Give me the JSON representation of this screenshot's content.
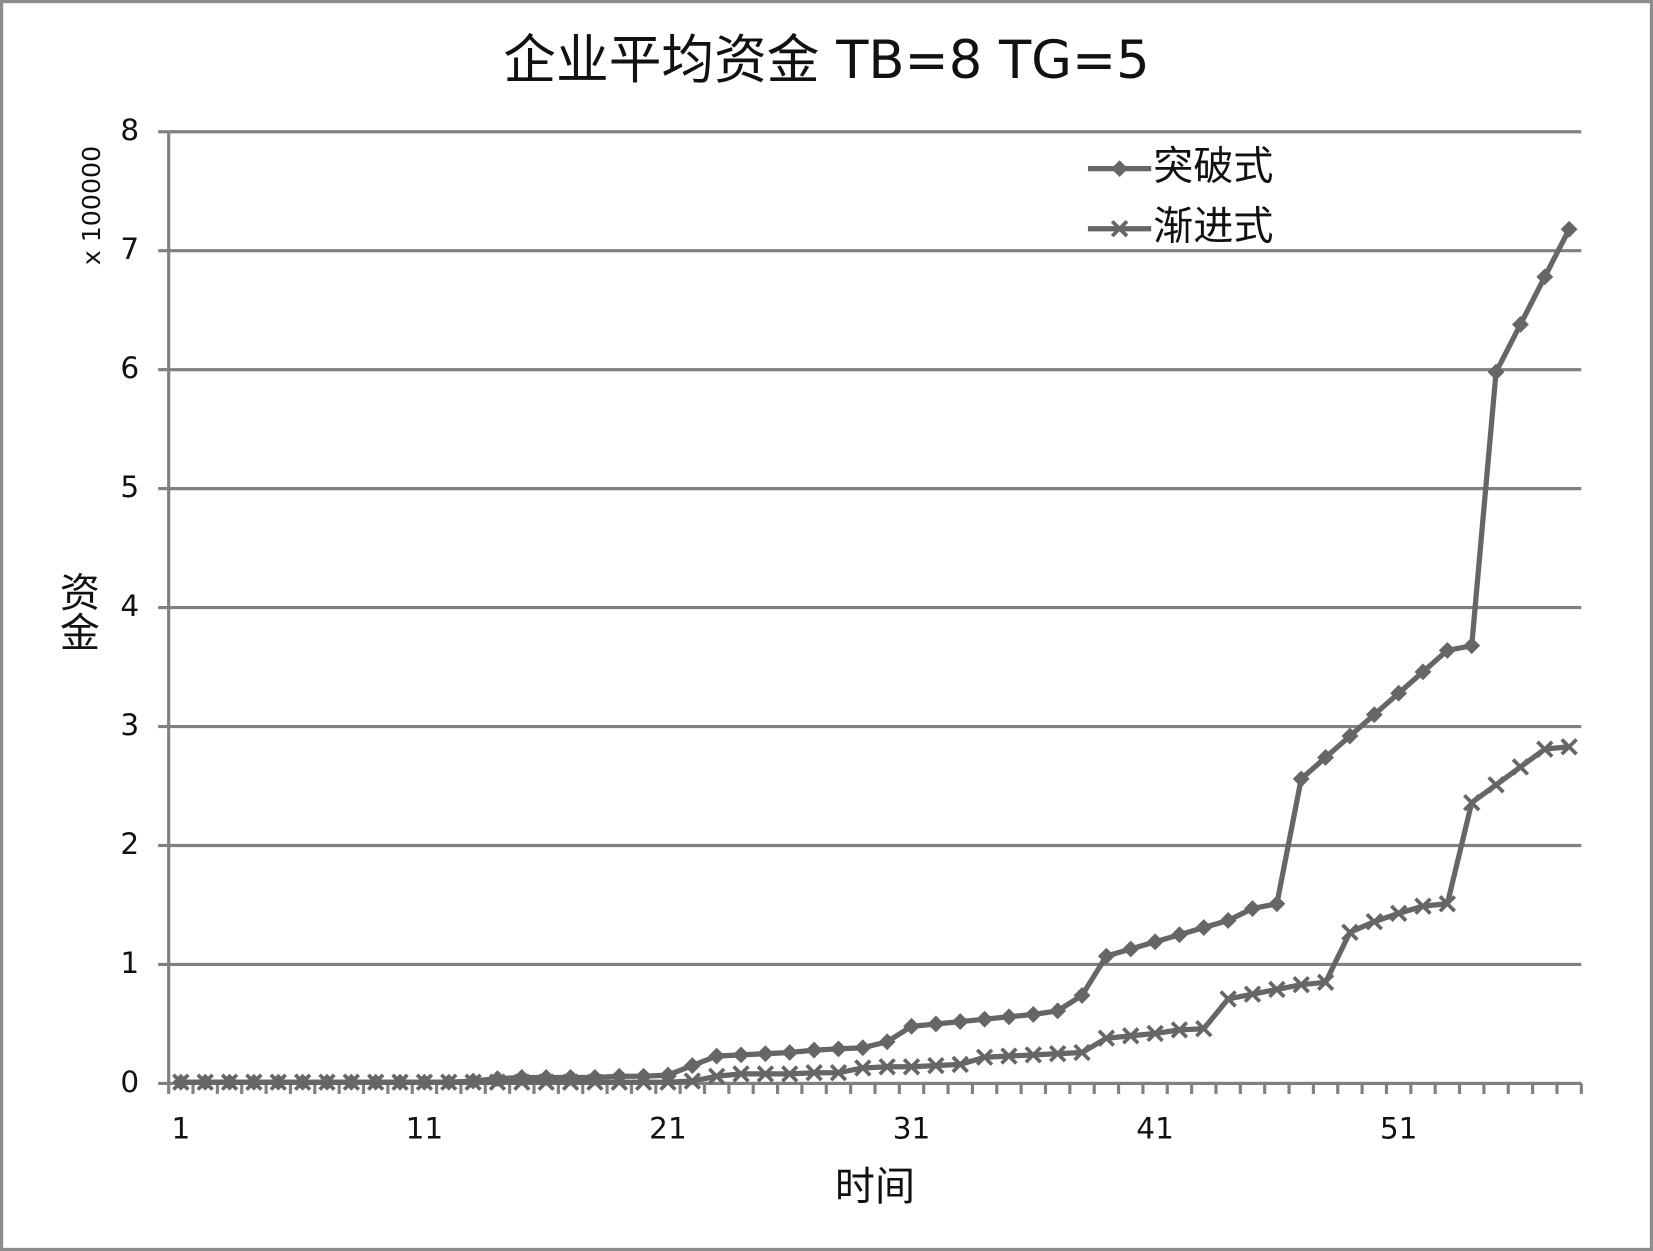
{
  "chart_data": {
    "type": "line",
    "title": "企业平均资金 TB=8 TG=5",
    "xlabel": "时间",
    "ylabel": "资金",
    "y_unit_label": "x 100000",
    "categories": [
      "1",
      null,
      null,
      null,
      null,
      null,
      null,
      null,
      null,
      null,
      "11",
      null,
      null,
      null,
      null,
      null,
      null,
      null,
      null,
      null,
      "21",
      null,
      null,
      null,
      null,
      null,
      null,
      null,
      null,
      null,
      "31",
      null,
      null,
      null,
      null,
      null,
      null,
      null,
      null,
      null,
      "41",
      null,
      null,
      null,
      null,
      null,
      null,
      null,
      null,
      null,
      "51",
      null,
      null,
      null,
      null,
      null,
      null,
      null
    ],
    "series": [
      {
        "name": "突破式",
        "color": "#666666",
        "marker": "diamond",
        "values": [
          0.01,
          0.01,
          0.01,
          0.01,
          0.01,
          0.01,
          0.01,
          0.01,
          0.01,
          0.01,
          0.01,
          0.01,
          0.02,
          0.04,
          0.05,
          0.05,
          0.05,
          0.05,
          0.06,
          0.06,
          0.07,
          0.15,
          0.23,
          0.24,
          0.25,
          0.26,
          0.28,
          0.29,
          0.3,
          0.35,
          0.48,
          0.5,
          0.52,
          0.54,
          0.56,
          0.58,
          0.61,
          0.74,
          1.07,
          1.13,
          1.19,
          1.25,
          1.31,
          1.37,
          1.47,
          1.51,
          2.56,
          2.74,
          2.92,
          3.1,
          3.28,
          3.46,
          3.64,
          3.68,
          5.98,
          6.38,
          6.78,
          7.18
        ]
      },
      {
        "name": "渐进式",
        "color": "#666666",
        "marker": "x",
        "values": [
          0.01,
          0.01,
          0.01,
          0.01,
          0.01,
          0.01,
          0.01,
          0.01,
          0.01,
          0.01,
          0.01,
          0.01,
          0.01,
          0.01,
          0.01,
          0.01,
          0.01,
          0.01,
          0.01,
          0.01,
          0.01,
          0.02,
          0.06,
          0.08,
          0.08,
          0.08,
          0.09,
          0.09,
          0.13,
          0.14,
          0.14,
          0.15,
          0.16,
          0.22,
          0.23,
          0.24,
          0.25,
          0.26,
          0.38,
          0.4,
          0.42,
          0.45,
          0.46,
          0.71,
          0.75,
          0.79,
          0.83,
          0.85,
          1.27,
          1.36,
          1.43,
          1.49,
          1.51,
          2.36,
          2.51,
          2.66,
          2.81,
          2.83
        ]
      }
    ],
    "ylim": [
      0,
      8
    ],
    "yticks": [
      0,
      1,
      2,
      3,
      4,
      5,
      6,
      7,
      8
    ],
    "grid": true,
    "legend_position": "upper right"
  }
}
